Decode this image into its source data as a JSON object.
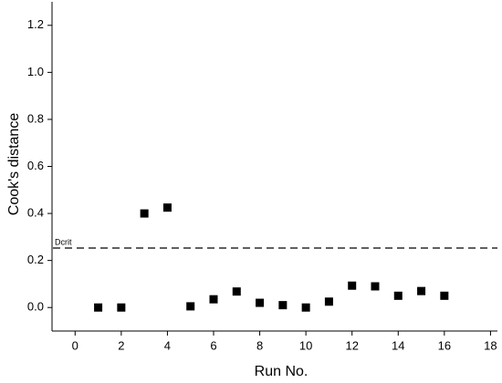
{
  "chart_data": {
    "type": "scatter",
    "x_label": "Run No.",
    "y_label": "Cook's distance",
    "x": [
      1,
      2,
      3,
      4,
      5,
      6,
      7,
      8,
      9,
      10,
      11,
      12,
      13,
      14,
      15,
      16
    ],
    "series": [
      {
        "color": "#000000",
        "values": [
          0.0,
          0.0,
          0.4,
          0.425,
          0.005,
          0.035,
          0.068,
          0.02,
          0.01,
          0.0,
          0.025,
          0.093,
          0.09,
          0.05,
          0.07,
          0.05
        ]
      }
    ],
    "xlim": [
      -1,
      18.3
    ],
    "ylim": [
      -0.1,
      1.3
    ],
    "xticks": [
      0,
      2,
      4,
      6,
      8,
      10,
      12,
      14,
      16,
      18
    ],
    "yticks": [
      {
        "value": 0,
        "label": "0.0"
      },
      0.2,
      0.4,
      0.6,
      0.8,
      {
        "value": 1,
        "label": "1.0"
      },
      1.2
    ],
    "threshold": {
      "label": "Dcrit",
      "value": 0.253
    }
  }
}
